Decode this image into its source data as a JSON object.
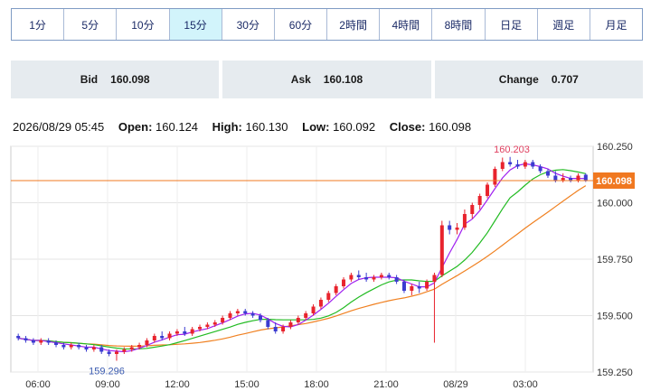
{
  "timeframes": [
    {
      "label": "1分",
      "active": false
    },
    {
      "label": "5分",
      "active": false
    },
    {
      "label": "10分",
      "active": false
    },
    {
      "label": "15分",
      "active": true
    },
    {
      "label": "30分",
      "active": false
    },
    {
      "label": "60分",
      "active": false
    },
    {
      "label": "2時間",
      "active": false
    },
    {
      "label": "4時間",
      "active": false
    },
    {
      "label": "8時間",
      "active": false
    },
    {
      "label": "日足",
      "active": false
    },
    {
      "label": "週足",
      "active": false
    },
    {
      "label": "月足",
      "active": false
    }
  ],
  "quotes": {
    "bid_label": "Bid",
    "bid_value": "160.098",
    "ask_label": "Ask",
    "ask_value": "160.108",
    "change_label": "Change",
    "change_value": "0.707"
  },
  "ohlc": {
    "datetime": "2026/08/29 05:45",
    "open_label": "Open:",
    "open": "160.124",
    "high_label": "High:",
    "high": "160.130",
    "low_label": "Low:",
    "low": "160.092",
    "close_label": "Close:",
    "close": "160.098"
  },
  "colors": {
    "up": "#e8232d",
    "down": "#3b3bd0",
    "ma_short": "#a020f0",
    "ma_mid": "#22bb22",
    "ma_long": "#f08020",
    "current": "#f07820"
  },
  "chart_data": {
    "type": "candlestick",
    "y_ticks": [
      "160.250",
      "160.000",
      "159.750",
      "159.500",
      "159.250"
    ],
    "y_tick_values": [
      160.25,
      160.0,
      159.75,
      159.5,
      159.25
    ],
    "ylim": [
      159.25,
      160.25
    ],
    "x_ticks": [
      "06:00",
      "09:00",
      "12:00",
      "15:00",
      "18:00",
      "21:00",
      "08/29",
      "03:00"
    ],
    "current_price": 160.098,
    "current_label": "160.098",
    "annotations": [
      {
        "text": "160.203",
        "value": 160.203
      },
      {
        "text": "159.296",
        "value": 159.296
      }
    ],
    "candles": [
      [
        159.41,
        159.42,
        159.39,
        159.4
      ],
      [
        159.4,
        159.41,
        159.38,
        159.39
      ],
      [
        159.39,
        159.4,
        159.37,
        159.38
      ],
      [
        159.38,
        159.4,
        159.37,
        159.39
      ],
      [
        159.39,
        159.4,
        159.37,
        159.38
      ],
      [
        159.38,
        159.39,
        159.36,
        159.37
      ],
      [
        159.37,
        159.38,
        159.35,
        159.36
      ],
      [
        159.36,
        159.38,
        159.35,
        159.37
      ],
      [
        159.37,
        159.38,
        159.35,
        159.36
      ],
      [
        159.36,
        159.37,
        159.34,
        159.35
      ],
      [
        159.35,
        159.37,
        159.34,
        159.36
      ],
      [
        159.36,
        159.37,
        159.33,
        159.34
      ],
      [
        159.34,
        159.35,
        159.32,
        159.33
      ],
      [
        159.33,
        159.35,
        159.3,
        159.34
      ],
      [
        159.34,
        159.36,
        159.33,
        159.35
      ],
      [
        159.35,
        159.37,
        159.34,
        159.36
      ],
      [
        159.36,
        159.38,
        159.35,
        159.37
      ],
      [
        159.37,
        159.4,
        159.36,
        159.39
      ],
      [
        159.39,
        159.42,
        159.38,
        159.41
      ],
      [
        159.41,
        159.43,
        159.39,
        159.4
      ],
      [
        159.4,
        159.43,
        159.39,
        159.42
      ],
      [
        159.42,
        159.44,
        159.41,
        159.43
      ],
      [
        159.43,
        159.45,
        159.41,
        159.42
      ],
      [
        159.42,
        159.45,
        159.41,
        159.44
      ],
      [
        159.44,
        159.46,
        159.43,
        159.45
      ],
      [
        159.45,
        159.47,
        159.44,
        159.46
      ],
      [
        159.46,
        159.48,
        159.45,
        159.47
      ],
      [
        159.47,
        159.5,
        159.46,
        159.49
      ],
      [
        159.49,
        159.52,
        159.48,
        159.51
      ],
      [
        159.51,
        159.53,
        159.5,
        159.52
      ],
      [
        159.52,
        159.53,
        159.5,
        159.51
      ],
      [
        159.51,
        159.52,
        159.49,
        159.5
      ],
      [
        159.5,
        159.51,
        159.47,
        159.48
      ],
      [
        159.48,
        159.49,
        159.44,
        159.45
      ],
      [
        159.45,
        159.47,
        159.42,
        159.43
      ],
      [
        159.43,
        159.46,
        159.42,
        159.45
      ],
      [
        159.45,
        159.48,
        159.44,
        159.47
      ],
      [
        159.47,
        159.5,
        159.46,
        159.49
      ],
      [
        159.49,
        159.52,
        159.48,
        159.51
      ],
      [
        159.51,
        159.55,
        159.5,
        159.54
      ],
      [
        159.54,
        159.58,
        159.53,
        159.57
      ],
      [
        159.57,
        159.61,
        159.56,
        159.6
      ],
      [
        159.6,
        159.64,
        159.59,
        159.63
      ],
      [
        159.63,
        159.67,
        159.62,
        159.66
      ],
      [
        159.66,
        159.69,
        159.65,
        159.68
      ],
      [
        159.68,
        159.7,
        159.66,
        159.67
      ],
      [
        159.67,
        159.69,
        159.65,
        159.66
      ],
      [
        159.66,
        159.68,
        159.65,
        159.67
      ],
      [
        159.67,
        159.69,
        159.66,
        159.68
      ],
      [
        159.68,
        159.69,
        159.66,
        159.67
      ],
      [
        159.67,
        159.68,
        159.64,
        159.65
      ],
      [
        159.65,
        159.66,
        159.6,
        159.61
      ],
      [
        159.61,
        159.64,
        159.59,
        159.63
      ],
      [
        159.63,
        159.65,
        159.6,
        159.62
      ],
      [
        159.62,
        159.66,
        159.61,
        159.65
      ],
      [
        159.65,
        159.69,
        159.38,
        159.68
      ],
      [
        159.68,
        159.92,
        159.67,
        159.9
      ],
      [
        159.9,
        159.92,
        159.86,
        159.88
      ],
      [
        159.88,
        159.91,
        159.86,
        159.89
      ],
      [
        159.89,
        159.97,
        159.88,
        159.95
      ],
      [
        159.95,
        160.0,
        159.93,
        159.99
      ],
      [
        159.99,
        160.04,
        159.97,
        160.03
      ],
      [
        160.03,
        160.09,
        160.02,
        160.08
      ],
      [
        160.08,
        160.16,
        160.07,
        160.15
      ],
      [
        160.15,
        160.2,
        160.14,
        160.18
      ],
      [
        160.18,
        160.203,
        160.16,
        160.17
      ],
      [
        160.17,
        160.19,
        160.15,
        160.16
      ],
      [
        160.16,
        160.19,
        160.15,
        160.18
      ],
      [
        160.18,
        160.19,
        160.15,
        160.16
      ],
      [
        160.16,
        160.17,
        160.13,
        160.14
      ],
      [
        160.14,
        160.15,
        160.11,
        160.12
      ],
      [
        160.12,
        160.14,
        160.09,
        160.1
      ],
      [
        160.1,
        160.13,
        160.09,
        160.11
      ],
      [
        160.11,
        160.12,
        160.09,
        160.1
      ],
      [
        160.1,
        160.13,
        160.09,
        160.12
      ],
      [
        160.124,
        160.13,
        160.092,
        160.098
      ]
    ]
  }
}
